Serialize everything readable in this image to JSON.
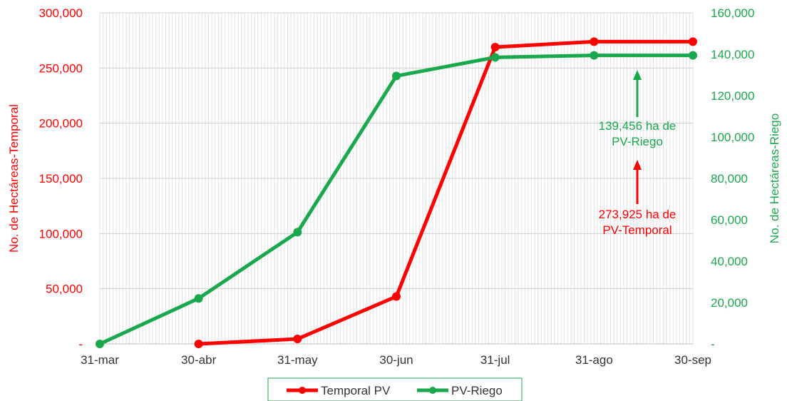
{
  "chart_data": {
    "type": "line",
    "categories": [
      "31-mar",
      "30-abr",
      "31-may",
      "30-jun",
      "31-jul",
      "31-ago",
      "30-sep"
    ],
    "series": [
      {
        "name": "Temporal PV",
        "axis": "left",
        "color": "#ff0000",
        "values": [
          null,
          0,
          4500,
          43000,
          269000,
          273925,
          273925
        ]
      },
      {
        "name": "PV-Riego",
        "axis": "right",
        "color": "#1aa84c",
        "values": [
          0,
          22000,
          54000,
          129500,
          138500,
          139456,
          139456
        ]
      }
    ],
    "y_left": {
      "label": "No. de Hectáreas-Temporal",
      "range": [
        0,
        300000
      ],
      "ticks": [
        0,
        50000,
        100000,
        150000,
        200000,
        250000,
        300000
      ],
      "tick_labels": [
        "-",
        "50,000",
        "100,000",
        "150,000",
        "200,000",
        "250,000",
        "300,000"
      ]
    },
    "y_right": {
      "label": "No. de Hectáreas-Riego",
      "range": [
        0,
        160000
      ],
      "ticks": [
        0,
        20000,
        40000,
        60000,
        80000,
        100000,
        120000,
        140000,
        160000
      ],
      "tick_labels": [
        "-",
        "20,000",
        "40,000",
        "60,000",
        "80,000",
        "100,000",
        "120,000",
        "140,000",
        "160,000"
      ]
    },
    "grid": true,
    "legend_position": "bottom",
    "annotations": [
      {
        "lines": [
          "139,456 ha de",
          "PV-Riego"
        ],
        "color": "#1aa84c",
        "arrow": "up"
      },
      {
        "lines": [
          "273,925 ha de",
          "PV-Temporal"
        ],
        "color": "#ff0000",
        "arrow": "up"
      }
    ]
  }
}
